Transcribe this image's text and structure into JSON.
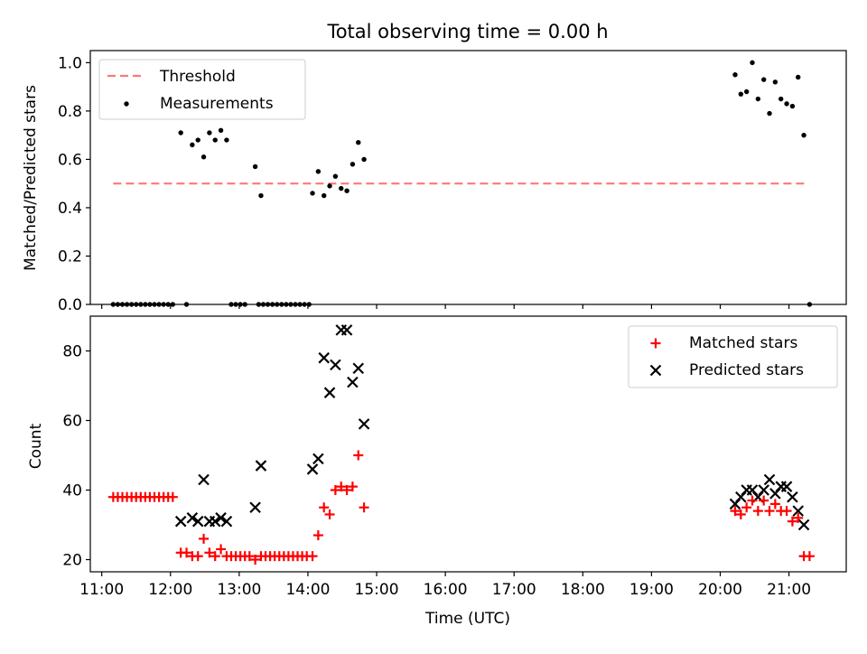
{
  "chart_data": [
    {
      "type": "scatter",
      "title": "Total observing time = 0.00 h",
      "ylabel": "Matched/Predicted stars",
      "xlabel": "",
      "ylim": [
        0,
        1.05
      ],
      "yticks": [
        0.0,
        0.2,
        0.4,
        0.6,
        0.8,
        1.0
      ],
      "ytick_labels": [
        "0.0",
        "0.2",
        "0.4",
        "0.6",
        "0.8",
        "1.0"
      ],
      "xlim": [
        "10:50",
        "21:50"
      ],
      "grid": false,
      "legend": {
        "placement": "top-left",
        "entries": [
          "Threshold",
          "Measurements"
        ]
      },
      "series": [
        {
          "name": "Threshold",
          "kind": "line",
          "style": "dashed",
          "color": "#ff7777",
          "points": [
            [
              "11:10",
              0.5
            ],
            [
              "21:15",
              0.5
            ]
          ]
        },
        {
          "name": "Measurements",
          "kind": "scatter",
          "color": "#000000",
          "points": [
            [
              "11:10",
              0.0
            ],
            [
              "11:14",
              0.0
            ],
            [
              "11:18",
              0.0
            ],
            [
              "11:22",
              0.0
            ],
            [
              "11:26",
              0.0
            ],
            [
              "11:30",
              0.0
            ],
            [
              "11:34",
              0.0
            ],
            [
              "11:38",
              0.0
            ],
            [
              "11:42",
              0.0
            ],
            [
              "11:46",
              0.0
            ],
            [
              "11:50",
              0.0
            ],
            [
              "11:54",
              0.0
            ],
            [
              "11:58",
              0.0
            ],
            [
              "12:02",
              0.0
            ],
            [
              "12:14",
              0.0
            ],
            [
              "12:53",
              0.0
            ],
            [
              "12:57",
              0.0
            ],
            [
              "13:01",
              0.0
            ],
            [
              "13:05",
              0.0
            ],
            [
              "13:17",
              0.0
            ],
            [
              "13:21",
              0.0
            ],
            [
              "13:25",
              0.0
            ],
            [
              "13:29",
              0.0
            ],
            [
              "13:33",
              0.0
            ],
            [
              "13:37",
              0.0
            ],
            [
              "13:41",
              0.0
            ],
            [
              "13:45",
              0.0
            ],
            [
              "13:49",
              0.0
            ],
            [
              "13:53",
              0.0
            ],
            [
              "13:57",
              0.0
            ],
            [
              "14:01",
              0.0
            ],
            [
              "21:18",
              0.0
            ],
            [
              "12:09",
              0.71
            ],
            [
              "12:19",
              0.66
            ],
            [
              "12:24",
              0.68
            ],
            [
              "12:29",
              0.61
            ],
            [
              "12:34",
              0.71
            ],
            [
              "12:39",
              0.68
            ],
            [
              "12:44",
              0.72
            ],
            [
              "12:49",
              0.68
            ],
            [
              "13:14",
              0.57
            ],
            [
              "13:19",
              0.45
            ],
            [
              "14:04",
              0.46
            ],
            [
              "14:09",
              0.55
            ],
            [
              "14:14",
              0.45
            ],
            [
              "14:19",
              0.49
            ],
            [
              "14:24",
              0.53
            ],
            [
              "14:29",
              0.48
            ],
            [
              "14:34",
              0.47
            ],
            [
              "14:39",
              0.58
            ],
            [
              "14:44",
              0.67
            ],
            [
              "14:49",
              0.6
            ],
            [
              "20:13",
              0.95
            ],
            [
              "20:18",
              0.87
            ],
            [
              "20:23",
              0.88
            ],
            [
              "20:28",
              1.0
            ],
            [
              "20:33",
              0.85
            ],
            [
              "20:38",
              0.93
            ],
            [
              "20:43",
              0.79
            ],
            [
              "20:48",
              0.92
            ],
            [
              "20:53",
              0.85
            ],
            [
              "20:58",
              0.83
            ],
            [
              "21:03",
              0.82
            ],
            [
              "21:08",
              0.94
            ],
            [
              "21:13",
              0.7
            ]
          ]
        }
      ]
    },
    {
      "type": "scatter",
      "title": "",
      "ylabel": "Count",
      "xlabel": "Time (UTC)",
      "ylim": [
        16.5,
        90
      ],
      "yticks": [
        20,
        40,
        60,
        80
      ],
      "ytick_labels": [
        "20",
        "40",
        "60",
        "80"
      ],
      "xlim": [
        "10:50",
        "21:50"
      ],
      "xticks": [
        "11:00",
        "12:00",
        "13:00",
        "14:00",
        "15:00",
        "16:00",
        "17:00",
        "18:00",
        "19:00",
        "20:00",
        "21:00"
      ],
      "xtick_labels": [
        "11:00",
        "12:00",
        "13:00",
        "14:00",
        "15:00",
        "16:00",
        "17:00",
        "18:00",
        "19:00",
        "20:00",
        "21:00"
      ],
      "grid": false,
      "legend": {
        "placement": "top-right",
        "entries": [
          "Matched stars",
          "Predicted stars"
        ]
      },
      "series": [
        {
          "name": "Matched stars",
          "kind": "scatter",
          "marker": "+",
          "color": "#ff0000",
          "points": [
            [
              "11:10",
              38
            ],
            [
              "11:14",
              38
            ],
            [
              "11:18",
              38
            ],
            [
              "11:22",
              38
            ],
            [
              "11:26",
              38
            ],
            [
              "11:30",
              38
            ],
            [
              "11:34",
              38
            ],
            [
              "11:38",
              38
            ],
            [
              "11:42",
              38
            ],
            [
              "11:46",
              38
            ],
            [
              "11:50",
              38
            ],
            [
              "11:54",
              38
            ],
            [
              "11:58",
              38
            ],
            [
              "12:02",
              38
            ],
            [
              "12:09",
              22
            ],
            [
              "12:14",
              22
            ],
            [
              "12:19",
              21
            ],
            [
              "12:24",
              21
            ],
            [
              "12:29",
              26
            ],
            [
              "12:34",
              22
            ],
            [
              "12:39",
              21
            ],
            [
              "12:44",
              23
            ],
            [
              "12:49",
              21
            ],
            [
              "12:53",
              21
            ],
            [
              "12:57",
              21
            ],
            [
              "13:01",
              21
            ],
            [
              "13:05",
              21
            ],
            [
              "13:09",
              21
            ],
            [
              "13:14",
              20
            ],
            [
              "13:19",
              21
            ],
            [
              "13:23",
              21
            ],
            [
              "13:27",
              21
            ],
            [
              "13:31",
              21
            ],
            [
              "13:35",
              21
            ],
            [
              "13:39",
              21
            ],
            [
              "13:43",
              21
            ],
            [
              "13:47",
              21
            ],
            [
              "13:51",
              21
            ],
            [
              "13:55",
              21
            ],
            [
              "13:59",
              21
            ],
            [
              "14:04",
              21
            ],
            [
              "14:09",
              27
            ],
            [
              "14:14",
              35
            ],
            [
              "14:19",
              33
            ],
            [
              "14:24",
              40
            ],
            [
              "14:29",
              41
            ],
            [
              "14:34",
              40
            ],
            [
              "14:39",
              41
            ],
            [
              "14:44",
              50
            ],
            [
              "14:49",
              35
            ],
            [
              "20:13",
              34
            ],
            [
              "20:18",
              33
            ],
            [
              "20:23",
              35
            ],
            [
              "20:28",
              37
            ],
            [
              "20:33",
              34
            ],
            [
              "20:38",
              37
            ],
            [
              "20:43",
              34
            ],
            [
              "20:48",
              36
            ],
            [
              "20:53",
              34
            ],
            [
              "20:58",
              34
            ],
            [
              "21:03",
              31
            ],
            [
              "21:08",
              32
            ],
            [
              "21:13",
              21
            ],
            [
              "21:18",
              21
            ]
          ]
        },
        {
          "name": "Predicted stars",
          "kind": "scatter",
          "marker": "x",
          "color": "#000000",
          "points": [
            [
              "12:09",
              31
            ],
            [
              "12:19",
              32
            ],
            [
              "12:24",
              31
            ],
            [
              "12:29",
              43
            ],
            [
              "12:34",
              31
            ],
            [
              "12:39",
              31
            ],
            [
              "12:44",
              32
            ],
            [
              "12:49",
              31
            ],
            [
              "13:14",
              35
            ],
            [
              "13:19",
              47
            ],
            [
              "14:04",
              46
            ],
            [
              "14:09",
              49
            ],
            [
              "14:14",
              78
            ],
            [
              "14:19",
              68
            ],
            [
              "14:24",
              76
            ],
            [
              "14:29",
              86
            ],
            [
              "14:34",
              86
            ],
            [
              "14:39",
              71
            ],
            [
              "14:44",
              75
            ],
            [
              "14:49",
              59
            ],
            [
              "20:13",
              36
            ],
            [
              "20:18",
              38
            ],
            [
              "20:23",
              40
            ],
            [
              "20:28",
              40
            ],
            [
              "20:33",
              38
            ],
            [
              "20:38",
              40
            ],
            [
              "20:43",
              43
            ],
            [
              "20:48",
              39
            ],
            [
              "20:53",
              41
            ],
            [
              "20:58",
              41
            ],
            [
              "21:03",
              38
            ],
            [
              "21:08",
              34
            ],
            [
              "21:13",
              30
            ]
          ]
        }
      ]
    }
  ]
}
